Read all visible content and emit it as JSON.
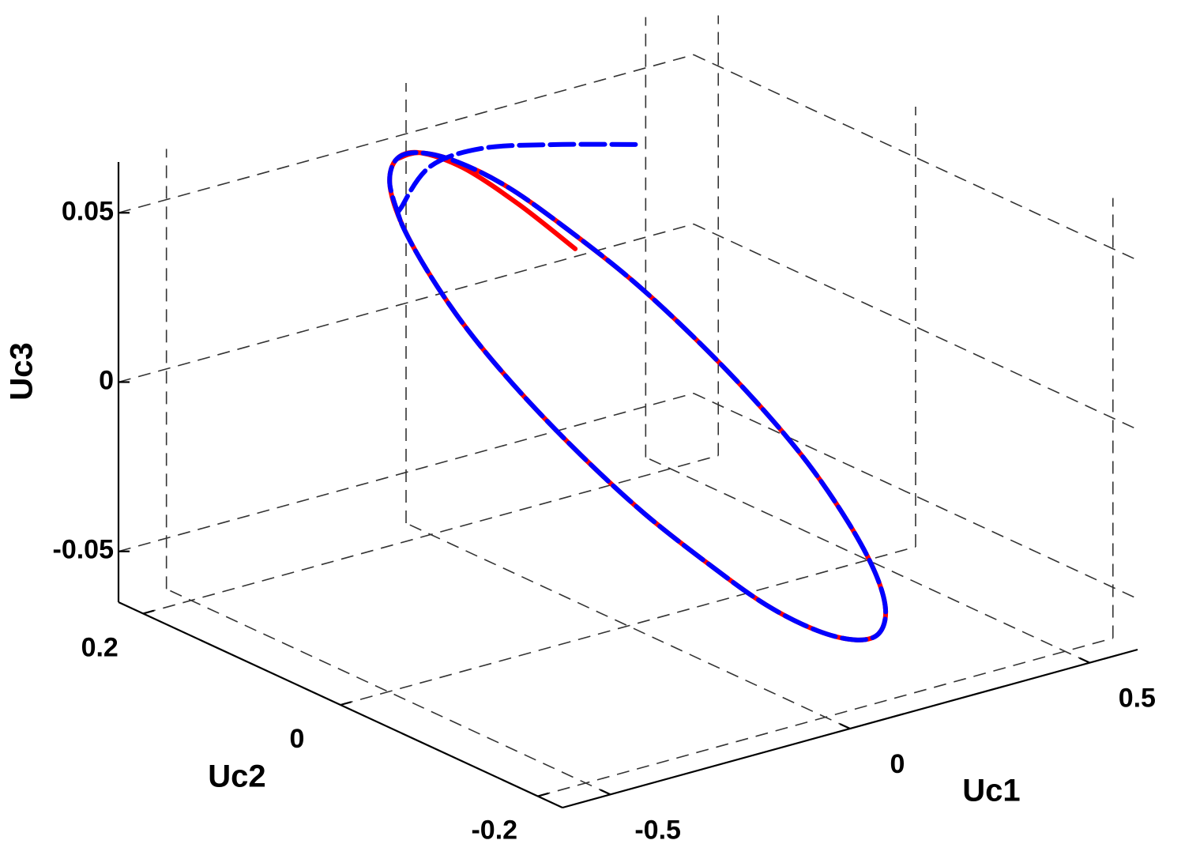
{
  "chart_data": {
    "type": "line3d",
    "xlabel": "Uc1",
    "ylabel": "Uc2",
    "zlabel": "Uc3",
    "xlim": [
      -0.6,
      0.6
    ],
    "ylim": [
      -0.225,
      0.225
    ],
    "zlim": [
      -0.065,
      0.065
    ],
    "xticks": [
      -0.5,
      0,
      0.5
    ],
    "yticks": [
      -0.2,
      0,
      0.2
    ],
    "zticks": [
      -0.05,
      0,
      0.05
    ],
    "grid": true,
    "series": [
      {
        "color": "#ff0000",
        "line_style": "solid",
        "x": [
          0.145,
          0.092,
          0.026,
          -0.045,
          -0.112,
          -0.17,
          -0.214,
          -0.243,
          -0.254,
          -0.246,
          -0.22,
          -0.178,
          -0.122,
          -0.057,
          0.014,
          0.086,
          0.152,
          0.21,
          0.254,
          0.283,
          0.294,
          0.286,
          0.26,
          0.218,
          0.162,
          0.097,
          0.026,
          -0.045,
          -0.112
        ],
        "y": [
          0.124,
          0.156,
          0.179,
          0.189,
          0.18,
          0.159,
          0.127,
          0.086,
          0.039,
          -0.01,
          -0.059,
          -0.103,
          -0.141,
          -0.168,
          -0.185,
          -0.189,
          -0.18,
          -0.159,
          -0.127,
          -0.086,
          -0.039,
          0.01,
          0.059,
          0.103,
          0.141,
          0.168,
          0.185,
          0.189,
          0.18
        ],
        "z": [
          0.024,
          0.035,
          0.045,
          0.051,
          0.053,
          0.051,
          0.046,
          0.038,
          0.027,
          0.015,
          0.002,
          -0.011,
          -0.023,
          -0.034,
          -0.042,
          -0.047,
          -0.049,
          -0.047,
          -0.042,
          -0.034,
          -0.023,
          -0.011,
          0.002,
          0.015,
          0.027,
          0.038,
          0.046,
          0.051,
          0.053
        ]
      },
      {
        "color": "#0000ff",
        "line_style": "dashed",
        "x": [
          0.174,
          0.066,
          -0.019,
          -0.107,
          -0.207,
          -0.214,
          -0.243,
          -0.254,
          -0.246,
          -0.22,
          -0.178,
          -0.122,
          -0.057,
          0.014,
          0.086,
          0.152,
          0.21,
          0.254,
          0.283,
          0.294,
          0.286,
          0.26,
          0.218,
          0.162,
          0.097,
          0.026,
          -0.045,
          -0.112,
          -0.17,
          -0.214
        ],
        "y": [
          0.077,
          0.108,
          0.139,
          0.148,
          0.128,
          0.127,
          0.086,
          0.039,
          -0.01,
          -0.059,
          -0.103,
          -0.141,
          -0.168,
          -0.185,
          -0.189,
          -0.18,
          -0.159,
          -0.127,
          -0.086,
          -0.039,
          0.01,
          0.059,
          0.103,
          0.141,
          0.168,
          0.185,
          0.189,
          0.18,
          0.159,
          0.127
        ],
        "z": [
          0.06,
          0.06,
          0.058,
          0.055,
          0.05,
          0.046,
          0.038,
          0.027,
          0.015,
          0.002,
          -0.011,
          -0.023,
          -0.034,
          -0.042,
          -0.047,
          -0.049,
          -0.047,
          -0.042,
          -0.034,
          -0.023,
          -0.011,
          0.002,
          0.015,
          0.027,
          0.038,
          0.046,
          0.051,
          0.053,
          0.051,
          0.046
        ]
      }
    ]
  }
}
